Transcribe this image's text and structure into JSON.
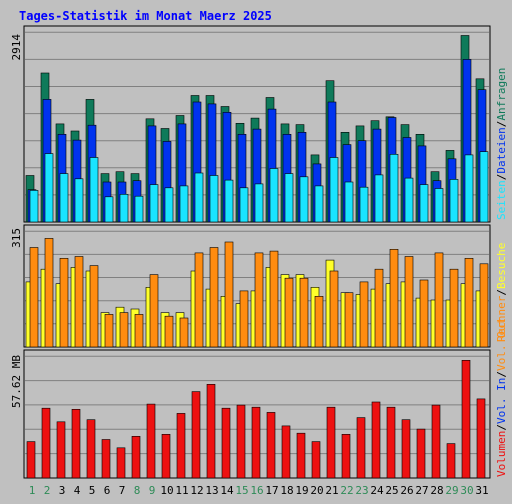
{
  "title": "Tages-Statistik im Monat Maerz 2025",
  "colors": {
    "background": "#c0c0c0",
    "title": "#0000ff",
    "anfragen": "#0f7a5a",
    "dateien": "#0033ee",
    "seiten": "#19e4ff",
    "besuche": "#ffff2a",
    "rechner": "#ff8c10",
    "volumen": "#ee1111",
    "weekend_label": "#2e8b57",
    "weekday_label": "#000000"
  },
  "side_labels": {
    "anfragen": "Anfragen",
    "dateien": "Dateien",
    "seiten": "Seiten",
    "besuche": "Besuche",
    "rechner": "Rechner",
    "vol_out": "Vol. Out",
    "vol_in": "Vol. In",
    "volumen": "Volumen",
    "sep": "/"
  },
  "chart_data": [
    {
      "type": "bar",
      "name": "top",
      "categories": [
        "1",
        "2",
        "3",
        "4",
        "5",
        "6",
        "7",
        "8",
        "9",
        "10",
        "11",
        "12",
        "13",
        "14",
        "15",
        "16",
        "17",
        "18",
        "19",
        "20",
        "21",
        "22",
        "23",
        "24",
        "25",
        "26",
        "27",
        "28",
        "29",
        "30",
        "31"
      ],
      "y_tick_label": "2914",
      "ylim": [
        0,
        2914
      ],
      "grid": true,
      "series": [
        {
          "name": "Anfragen",
          "values": [
            720,
            2310,
            1520,
            1410,
            1900,
            750,
            780,
            750,
            1600,
            1450,
            1650,
            1960,
            1960,
            1790,
            1530,
            1610,
            1930,
            1520,
            1510,
            1040,
            2190,
            1390,
            1490,
            1570,
            1630,
            1510,
            1360,
            780,
            1110,
            2890,
            2220
          ]
        },
        {
          "name": "Dateien",
          "values": [
            500,
            1900,
            1360,
            1270,
            1500,
            620,
            620,
            640,
            1490,
            1250,
            1520,
            1860,
            1830,
            1700,
            1360,
            1440,
            1750,
            1360,
            1390,
            900,
            1860,
            1200,
            1260,
            1440,
            1620,
            1310,
            1180,
            640,
            980,
            2520,
            2050
          ]
        },
        {
          "name": "Seiten",
          "values": [
            490,
            1060,
            750,
            670,
            1000,
            390,
            430,
            400,
            580,
            530,
            560,
            760,
            720,
            650,
            530,
            590,
            830,
            750,
            700,
            560,
            1000,
            620,
            540,
            730,
            1050,
            680,
            580,
            520,
            660,
            1040,
            1090
          ]
        },
        {
          "name": "Seiten (lower)",
          "values": [
            420,
            1380,
            920,
            780,
            1170,
            450,
            480,
            460,
            640,
            580,
            620,
            900,
            860,
            790,
            580,
            640,
            1030,
            930,
            810,
            690,
            1280,
            700,
            580,
            910,
            1380,
            810,
            720,
            560,
            760,
            1340,
            1440
          ]
        }
      ]
    },
    {
      "type": "bar",
      "name": "middle",
      "categories": [
        "1",
        "2",
        "3",
        "4",
        "5",
        "6",
        "7",
        "8",
        "9",
        "10",
        "11",
        "12",
        "13",
        "14",
        "15",
        "16",
        "17",
        "18",
        "19",
        "20",
        "21",
        "22",
        "23",
        "24",
        "25",
        "26",
        "27",
        "28",
        "29",
        "30",
        "31"
      ],
      "y_tick_label": "315",
      "ylim": [
        0,
        315
      ],
      "grid": true,
      "series": [
        {
          "name": "Besuche",
          "values": [
            180,
            215,
            175,
            220,
            210,
            95,
            110,
            105,
            165,
            95,
            95,
            210,
            160,
            140,
            120,
            155,
            220,
            200,
            200,
            165,
            240,
            150,
            145,
            160,
            175,
            180,
            135,
            130,
            130,
            175,
            155
          ]
        },
        {
          "name": "Rechner",
          "values": [
            275,
            300,
            245,
            250,
            225,
            90,
            95,
            90,
            200,
            85,
            80,
            260,
            275,
            290,
            155,
            260,
            265,
            190,
            190,
            140,
            210,
            150,
            180,
            215,
            270,
            250,
            185,
            260,
            215,
            245,
            230
          ]
        }
      ]
    },
    {
      "type": "bar",
      "name": "bottom",
      "categories": [
        "1",
        "2",
        "3",
        "4",
        "5",
        "6",
        "7",
        "8",
        "9",
        "10",
        "11",
        "12",
        "13",
        "14",
        "15",
        "16",
        "17",
        "18",
        "19",
        "20",
        "21",
        "22",
        "23",
        "24",
        "25",
        "26",
        "27",
        "28",
        "29",
        "30",
        "31"
      ],
      "y_tick_label": "57.62 MB",
      "ylim": [
        0,
        57.62
      ],
      "grid": true,
      "series": [
        {
          "name": "Volumen",
          "values": [
            17.5,
            33.5,
            27.0,
            33.0,
            28.0,
            18.5,
            14.5,
            20.0,
            35.5,
            21.0,
            31.0,
            41.5,
            45.0,
            33.5,
            35.0,
            34.0,
            31.5,
            25.0,
            21.5,
            17.5,
            34.0,
            21.0,
            29.0,
            36.5,
            34.0,
            28.0,
            23.5,
            35.0,
            16.5,
            56.5,
            38.0
          ]
        }
      ]
    }
  ],
  "x_labels": [
    "1",
    "2",
    "3",
    "4",
    "5",
    "6",
    "7",
    "8",
    "9",
    "10",
    "11",
    "12",
    "13",
    "14",
    "15",
    "16",
    "17",
    "18",
    "19",
    "20",
    "21",
    "22",
    "23",
    "24",
    "25",
    "26",
    "27",
    "28",
    "29",
    "30",
    "31"
  ],
  "weekend_days": [
    1,
    2,
    8,
    9,
    15,
    16,
    22,
    23,
    29,
    30
  ]
}
